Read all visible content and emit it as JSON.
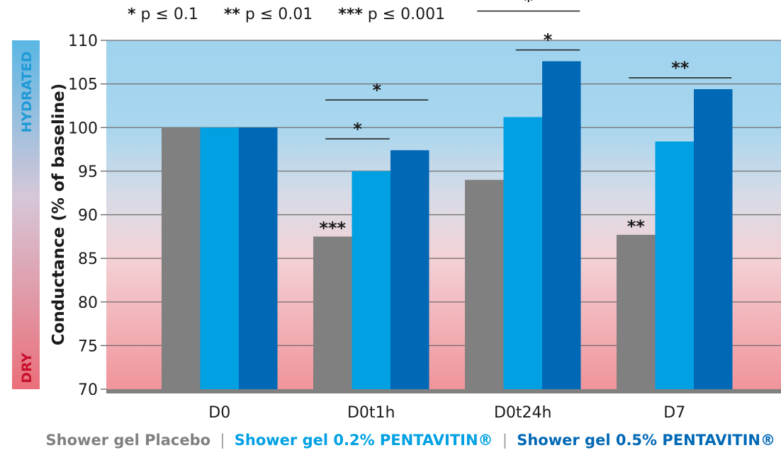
{
  "significance_note": [
    {
      "stars": "*",
      "text": "p ≤ 0.1"
    },
    {
      "stars": "**",
      "text": "p ≤ 0.01"
    },
    {
      "stars": "***",
      "text": "p ≤ 0.001"
    }
  ],
  "side_labels": {
    "top": "HYDRATED",
    "bottom": "DRY",
    "top_color": "#1f9ad8",
    "bottom_color": "#c8102e"
  },
  "chart_data": {
    "type": "bar",
    "title": "",
    "xlabel": "",
    "ylabel": "Conductance (% of baseline)",
    "ylim": [
      70,
      110
    ],
    "yticks": [
      70,
      75,
      80,
      85,
      90,
      95,
      100,
      105,
      110
    ],
    "grid": true,
    "categories": [
      "D0",
      "D0t1h",
      "D0t24h",
      "D7"
    ],
    "series": [
      {
        "name": "Shower gel Placebo",
        "color": "#808080",
        "values": [
          100,
          87.5,
          94,
          87.7
        ]
      },
      {
        "name": "Shower gel 0.2% PENTAVITIN®",
        "color": "#00a0e3",
        "values": [
          100,
          95,
          101.2,
          98.4
        ]
      },
      {
        "name": "Shower gel 0.5% PENTAVITIN®",
        "color": "#0068b5",
        "values": [
          100,
          97.4,
          107.6,
          104.4
        ]
      }
    ],
    "bar_annotations": [
      {
        "category": "D0t1h",
        "series": 0,
        "text": "***"
      },
      {
        "category": "D7",
        "series": 0,
        "text": "**"
      }
    ],
    "significance_brackets": [
      {
        "category": "D0t1h",
        "from_series": 0,
        "to_series": 1,
        "text": "*"
      },
      {
        "category": "D0t1h",
        "from_series": 0,
        "to_series": 2,
        "text": "*"
      },
      {
        "category": "D0t24h",
        "from_series": 1,
        "to_series": 2,
        "text": "*"
      },
      {
        "category": "D0t24h",
        "from_series": 0,
        "to_series": 2,
        "text": "*"
      },
      {
        "category": "D7",
        "from_series": 0,
        "to_series": 2,
        "text": "**"
      }
    ]
  },
  "legend": {
    "separator": "|",
    "items": [
      {
        "label": "Shower gel Placebo",
        "color": "#808080"
      },
      {
        "label": "Shower gel 0.2% PENTAVITIN®",
        "color": "#00a0e3"
      },
      {
        "label": "Shower gel 0.5% PENTAVITIN®",
        "color": "#0068b5"
      }
    ]
  }
}
